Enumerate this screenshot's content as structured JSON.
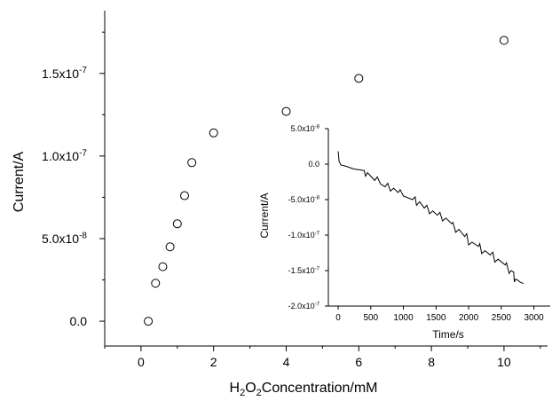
{
  "chart_data": [
    {
      "type": "scatter",
      "xlabel_main": "H",
      "xlabel_sub1": "2",
      "xlabel_mid": "O",
      "xlabel_sub2": "2",
      "xlabel_rest": "Concentration/mM",
      "ylabel": "Current/A",
      "xlim": [
        -1,
        11.2
      ],
      "ylim": [
        -1.5e-08,
        1.88e-07
      ],
      "x_ticks": [
        0,
        2,
        4,
        6,
        8,
        10
      ],
      "x_tick_labels": [
        "0",
        "2",
        "4",
        "6",
        "8",
        "10"
      ],
      "y_ticks": [
        0,
        5e-08,
        1e-07,
        1.5e-07
      ],
      "y_tick_labels": [
        "0.0",
        "5.0x10-8",
        "1.0x10-7",
        "1.5x10-7"
      ],
      "series": [
        {
          "marker": "open-circle",
          "x": [
            0.2,
            0.4,
            0.6,
            0.8,
            1.0,
            1.2,
            1.4,
            2.0,
            4.0,
            6.0,
            10.0
          ],
          "y": [
            0.0,
            2.3e-08,
            3.3e-08,
            4.5e-08,
            5.9e-08,
            7.6e-08,
            9.6e-08,
            1.14e-07,
            1.27e-07,
            1.47e-07,
            1.7e-07
          ]
        }
      ]
    },
    {
      "type": "line",
      "xlabel": "Time/s",
      "ylabel": "Current/A",
      "xlim": [
        -150,
        3250
      ],
      "ylim": [
        -2e-07,
        5e-08
      ],
      "x_ticks": [
        0,
        500,
        1000,
        1500,
        2000,
        2500,
        3000
      ],
      "x_tick_labels": [
        "0",
        "500",
        "1000",
        "1500",
        "2000",
        "2500",
        "3000"
      ],
      "y_ticks": [
        5e-08,
        0,
        -5e-08,
        -1e-07,
        -1.5e-07,
        -2e-07
      ],
      "y_tick_labels": [
        "5.0x10-8",
        "0.0",
        "-5.0x10-8",
        "-1.0x10-7",
        "-1.5x10-7",
        "-2.0x10-7"
      ],
      "series": [
        {
          "x": [
            0,
            15,
            40,
            80,
            120,
            180,
            250,
            320,
            400,
            420,
            450,
            560,
            600,
            650,
            720,
            760,
            800,
            850,
            920,
            950,
            1000,
            1140,
            1180,
            1200,
            1250,
            1320,
            1360,
            1400,
            1450,
            1520,
            1560,
            1600,
            1650,
            1740,
            1760,
            1800,
            1850,
            1940,
            1970,
            2000,
            2050,
            2150,
            2170,
            2200,
            2250,
            2330,
            2370,
            2400,
            2450,
            2560,
            2580,
            2620,
            2650,
            2690,
            2700,
            2720,
            2760,
            2800,
            2840
          ],
          "y": [
            1.8e-08,
            4e-09,
            -1e-09,
            -2e-09,
            -3e-09,
            -5e-09,
            -7e-09,
            -8e-09,
            -9e-09,
            -1.7e-08,
            -1.2e-08,
            -2.3e-08,
            -1.8e-08,
            -2.8e-08,
            -3.2e-08,
            -2.7e-08,
            -3.8e-08,
            -3.4e-08,
            -4e-08,
            -3.6e-08,
            -4.5e-08,
            -5e-08,
            -4.6e-08,
            -5.8e-08,
            -5.3e-08,
            -6.2e-08,
            -5.8e-08,
            -7e-08,
            -6.6e-08,
            -7.2e-08,
            -6.8e-08,
            -8e-08,
            -7.6e-08,
            -8.4e-08,
            -8.2e-08,
            -9.6e-08,
            -9.2e-08,
            -1.02e-07,
            -9.8e-08,
            -1.14e-07,
            -1.1e-07,
            -1.16e-07,
            -1.12e-07,
            -1.26e-07,
            -1.22e-07,
            -1.28e-07,
            -1.24e-07,
            -1.38e-07,
            -1.34e-07,
            -1.42e-07,
            -1.39e-07,
            -1.54e-07,
            -1.5e-07,
            -1.52e-07,
            -1.66e-07,
            -1.62e-07,
            -1.64e-07,
            -1.67e-07,
            -1.68e-07
          ]
        }
      ]
    }
  ]
}
